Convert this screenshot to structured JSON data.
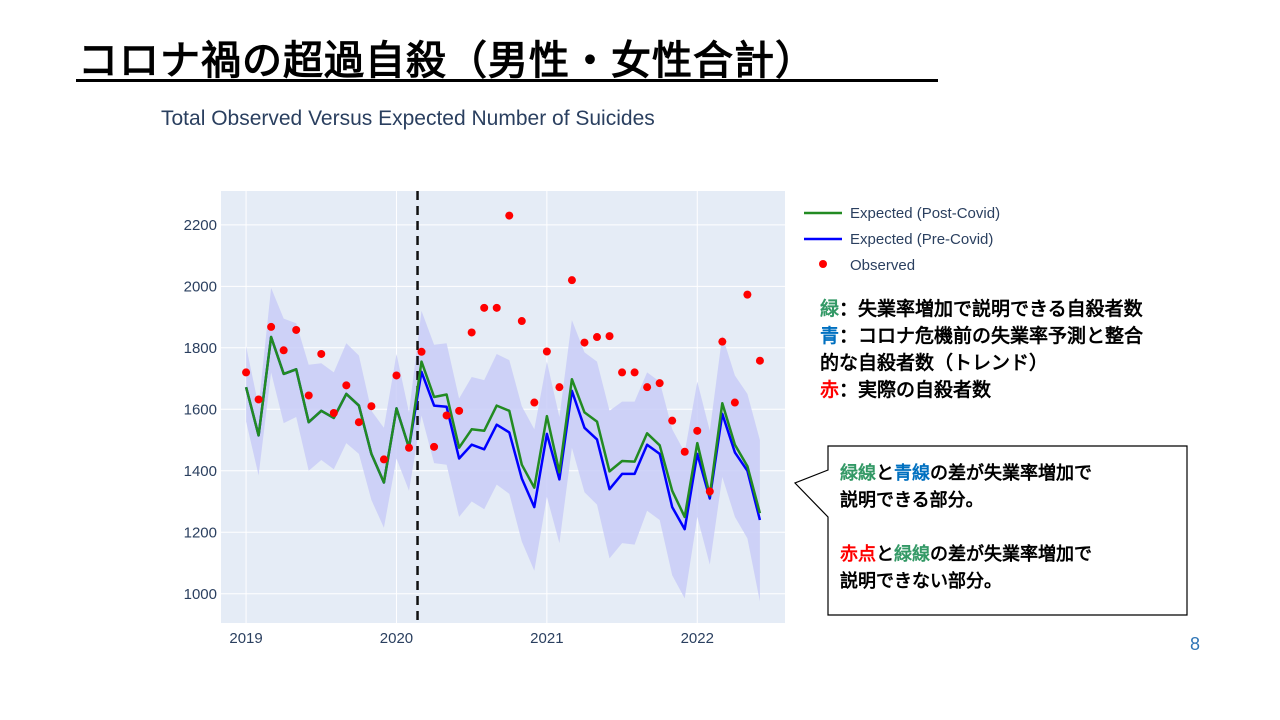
{
  "slide": {
    "title": "コロナ禍の超過自殺（男性・女性合計）",
    "page_number": "8"
  },
  "legend_notes": {
    "green_key": "緑",
    "green_text": "：失業率増加で説明できる自殺者数",
    "blue_key": "青",
    "blue_text_1": "：コロナ危機前の失業率予測と整合",
    "blue_text_2": "的な自殺者数（トレンド）",
    "red_key": "赤",
    "red_text": "：実際の自殺者数"
  },
  "callout": {
    "p1_green": "緑線",
    "p1_and": "と",
    "p1_blue": "青線",
    "p1_rest": "の差が失業率増加で",
    "p1_line2": "説明できる部分。",
    "p2_red": "赤点",
    "p2_and": "と",
    "p2_green": "緑線",
    "p2_rest": "の差が失業率増加で",
    "p2_line2": "説明できない部分。"
  },
  "colors": {
    "green": "#228B22",
    "blue": "#0000FF",
    "red": "#FF0000",
    "band": "#C9CDF7",
    "plot_bg": "#E5ECF6",
    "key_green": "#339966",
    "key_blue": "#0070C0",
    "key_red": "#FF0000",
    "callout_green": "#339966",
    "callout_blue": "#0070C0",
    "callout_red": "#FF0000"
  },
  "chart_data": {
    "type": "line",
    "title": "Total Observed Versus Expected Number of Suicides",
    "xlabel": "",
    "ylabel": "",
    "x_start": "2019-01",
    "x_ticks": [
      "2019",
      "2020",
      "2021",
      "2022"
    ],
    "y_ticks": [
      1000,
      1200,
      1400,
      1600,
      1800,
      2000,
      2200
    ],
    "ylim": [
      905,
      2310
    ],
    "xlim": [
      "2018-11",
      "2022-08"
    ],
    "grid": true,
    "legend_position": "top-right",
    "covid_marker": "2020-03",
    "series": [
      {
        "name": "Expected (Post-Covid)",
        "kind": "line",
        "color": "#228B22",
        "values": [
          1672,
          1515,
          1835,
          1715,
          1730,
          1558,
          1595,
          1572,
          1650,
          1612,
          1455,
          1362,
          1603,
          1475,
          1755,
          1640,
          1648,
          1475,
          1535,
          1530,
          1612,
          1595,
          1420,
          1345,
          1578,
          1395,
          1698,
          1590,
          1560,
          1398,
          1432,
          1430,
          1522,
          1483,
          1335,
          1250,
          1490,
          1320,
          1620,
          1485,
          1415,
          1262
        ]
      },
      {
        "name": "Expected (Pre-Covid)",
        "kind": "line",
        "color": "#0000FF",
        "values": [
          1672,
          1515,
          1835,
          1715,
          1730,
          1558,
          1595,
          1572,
          1650,
          1612,
          1455,
          1362,
          1603,
          1475,
          1722,
          1612,
          1608,
          1440,
          1485,
          1470,
          1550,
          1525,
          1375,
          1282,
          1520,
          1372,
          1660,
          1540,
          1502,
          1340,
          1390,
          1390,
          1485,
          1455,
          1282,
          1210,
          1455,
          1310,
          1585,
          1460,
          1400,
          1240
        ]
      },
      {
        "name": "Observed",
        "kind": "markers",
        "color": "#FF0000",
        "values": [
          1720,
          1632,
          1868,
          1792,
          1858,
          1645,
          1780,
          1588,
          1678,
          1558,
          1610,
          1437,
          1710,
          1475,
          1787,
          1478,
          1580,
          1595,
          1850,
          1930,
          1930,
          2230,
          1887,
          1622,
          1788,
          1672,
          2020,
          1817,
          1835,
          1838,
          1720,
          1720,
          1672,
          1685,
          1563,
          1462,
          1530,
          1333,
          1820,
          1622,
          1973,
          1758
        ]
      }
    ],
    "band": {
      "upper": [
        1805,
        1610,
        1995,
        1895,
        1880,
        1745,
        1750,
        1720,
        1815,
        1775,
        1595,
        1540,
        1780,
        1590,
        1920,
        1810,
        1815,
        1635,
        1705,
        1695,
        1780,
        1760,
        1610,
        1535,
        1755,
        1575,
        1890,
        1785,
        1755,
        1595,
        1625,
        1625,
        1720,
        1690,
        1535,
        1460,
        1690,
        1530,
        1840,
        1710,
        1650,
        1500
      ],
      "lower": [
        1560,
        1385,
        1720,
        1555,
        1575,
        1400,
        1435,
        1405,
        1490,
        1455,
        1305,
        1215,
        1440,
        1335,
        1580,
        1425,
        1420,
        1250,
        1300,
        1275,
        1355,
        1325,
        1170,
        1075,
        1315,
        1165,
        1475,
        1330,
        1290,
        1115,
        1165,
        1160,
        1270,
        1240,
        1060,
        985,
        1250,
        1095,
        1380,
        1250,
        1180,
        975
      ]
    }
  }
}
